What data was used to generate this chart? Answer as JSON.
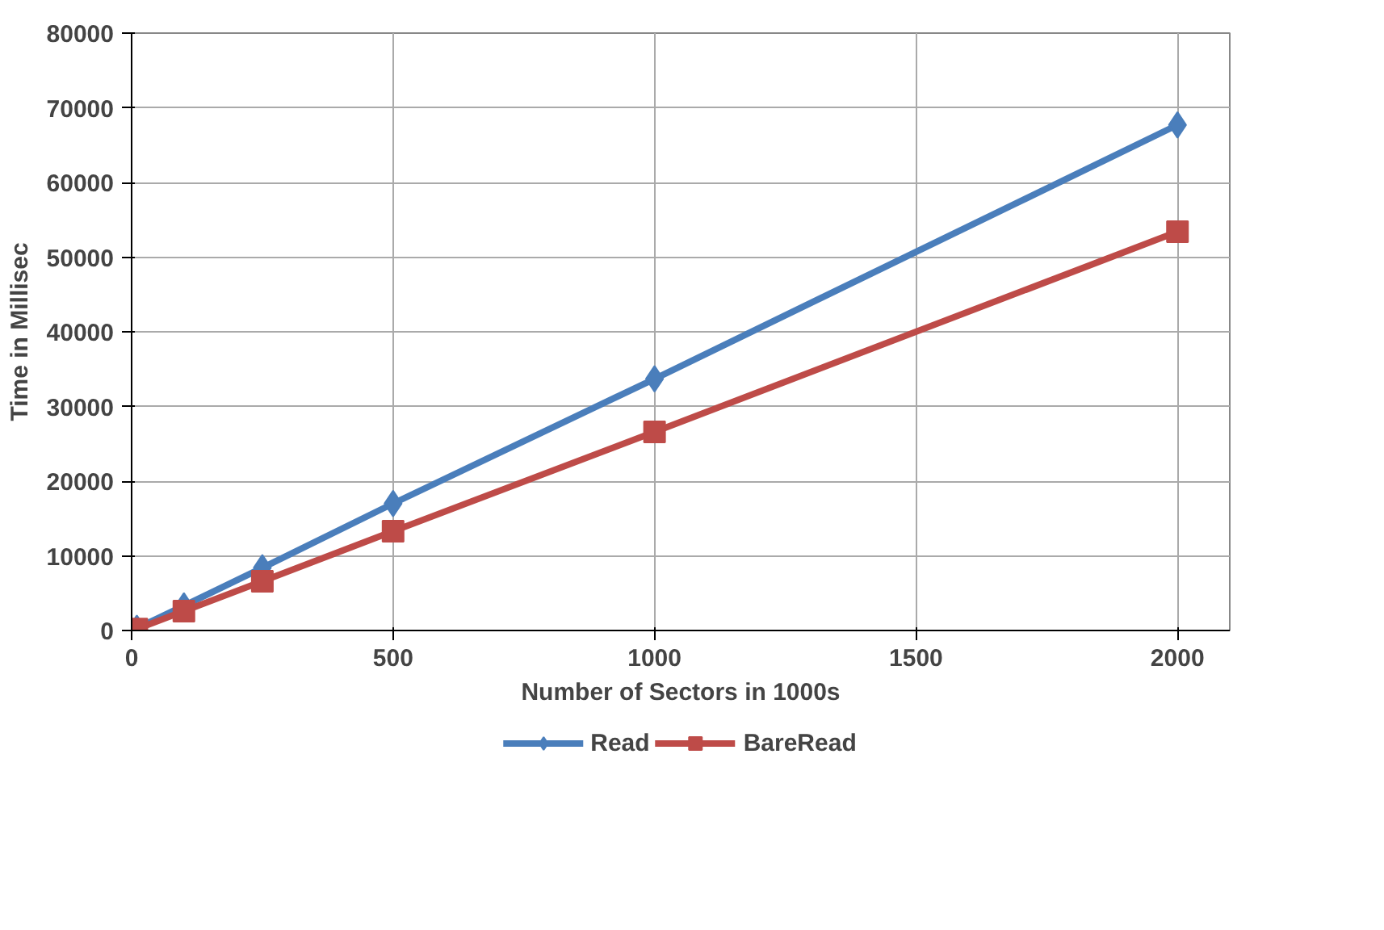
{
  "chart_data": {
    "type": "line",
    "xlabel": "Number of Sectors in 1000s",
    "ylabel": "Time in Millisec",
    "x": [
      10,
      100,
      250,
      500,
      1000,
      2000
    ],
    "series": [
      {
        "name": "Read",
        "color": "#4a7ebb",
        "marker": "diamond",
        "values": [
          300,
          3300,
          8400,
          17000,
          33700,
          67700
        ]
      },
      {
        "name": "BareRead",
        "color": "#be4b48",
        "marker": "square",
        "values": [
          200,
          2600,
          6600,
          13300,
          26600,
          53400
        ]
      }
    ],
    "xlim": [
      0,
      2100
    ],
    "xticks": [
      0,
      500,
      1000,
      1500,
      2000
    ],
    "ylim": [
      0,
      80000
    ],
    "yticks": [
      0,
      10000,
      20000,
      30000,
      40000,
      50000,
      60000,
      70000,
      80000
    ],
    "grid": true,
    "legend": "bottom",
    "line_style": "solid"
  }
}
